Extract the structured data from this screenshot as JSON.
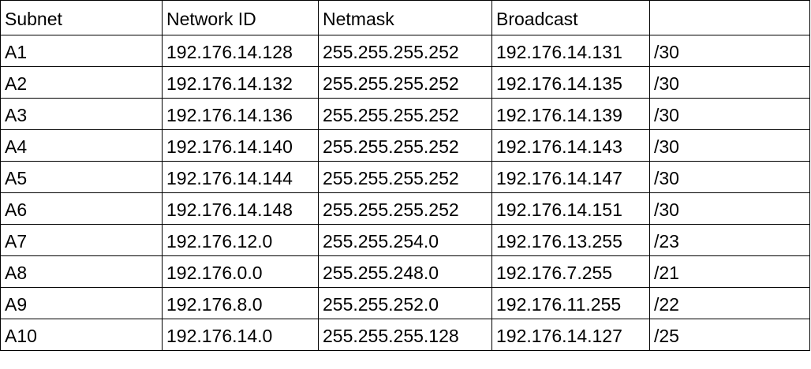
{
  "table": {
    "headers": [
      "Subnet",
      "Network ID",
      "Netmask",
      "Broadcast",
      ""
    ],
    "rows": [
      [
        "A1",
        "192.176.14.128",
        "255.255.255.252",
        "192.176.14.131",
        "/30"
      ],
      [
        "A2",
        "192.176.14.132",
        "255.255.255.252",
        "192.176.14.135",
        "/30"
      ],
      [
        "A3",
        "192.176.14.136",
        "255.255.255.252",
        "192.176.14.139",
        "/30"
      ],
      [
        "A4",
        "192.176.14.140",
        "255.255.255.252",
        "192.176.14.143",
        "/30"
      ],
      [
        "A5",
        "192.176.14.144",
        "255.255.255.252",
        "192.176.14.147",
        "/30"
      ],
      [
        "A6",
        "192.176.14.148",
        "255.255.255.252",
        "192.176.14.151",
        "/30"
      ],
      [
        "A7",
        "192.176.12.0",
        "255.255.254.0",
        "192.176.13.255",
        "/23"
      ],
      [
        "A8",
        "192.176.0.0",
        "255.255.248.0",
        "192.176.7.255",
        "/21"
      ],
      [
        "A9",
        "192.176.8.0",
        "255.255.252.0",
        "192.176.11.255",
        "/22"
      ],
      [
        "A10",
        "192.176.14.0",
        "255.255.255.128",
        "192.176.14.127",
        "/25"
      ]
    ]
  }
}
